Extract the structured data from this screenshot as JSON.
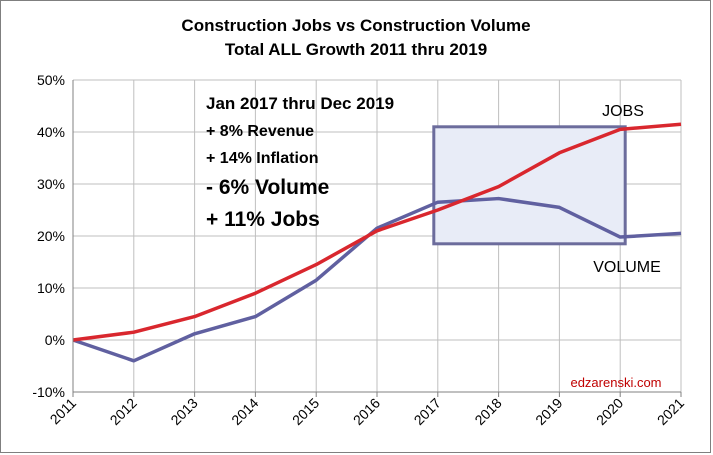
{
  "chart_data": {
    "type": "line",
    "title": "Construction Jobs vs Construction Volume",
    "subtitle": "Total ALL Growth 2011 thru 2019",
    "x": [
      "2011",
      "2012",
      "2013",
      "2014",
      "2015",
      "2016",
      "2017",
      "2018",
      "2019",
      "2020",
      "2021"
    ],
    "series": [
      {
        "name": "JOBS",
        "color": "#d9272e",
        "values": [
          0,
          1.5,
          4.5,
          9,
          14.5,
          21,
          25,
          29.5,
          36,
          40.5,
          41.5
        ]
      },
      {
        "name": "VOLUME",
        "color": "#6060a0",
        "values": [
          0,
          -4,
          1.2,
          4.5,
          11.5,
          21.5,
          26.5,
          27.2,
          25.5,
          19.8,
          20.5
        ]
      }
    ],
    "ylim": [
      -10,
      50
    ],
    "yticks": [
      -10,
      0,
      10,
      20,
      30,
      40,
      50
    ],
    "ytick_labels": [
      "-10%",
      "0%",
      "10%",
      "20%",
      "30%",
      "40%",
      "50%"
    ],
    "grid": true,
    "annotations": {
      "lines": [
        {
          "text": "Jan 2017 thru Dec 2019",
          "size": "medium"
        },
        {
          "text": "+  8% Revenue",
          "size": "small"
        },
        {
          "text": "+ 14% Inflation",
          "size": "small"
        },
        {
          "text": "-  6% Volume",
          "size": "large"
        },
        {
          "text": "+ 11% Jobs",
          "size": "large"
        }
      ],
      "highlight_box": {
        "x_from": "2017",
        "x_to": "2020",
        "y_from": 18.5,
        "y_to": 41
      }
    },
    "credit": "edzarenski.com",
    "colors": {
      "grid": "#bfbfbf",
      "box_fill": "#e8ecf7",
      "box_stroke": "#6c6c9c",
      "credit": "#c00000"
    }
  }
}
